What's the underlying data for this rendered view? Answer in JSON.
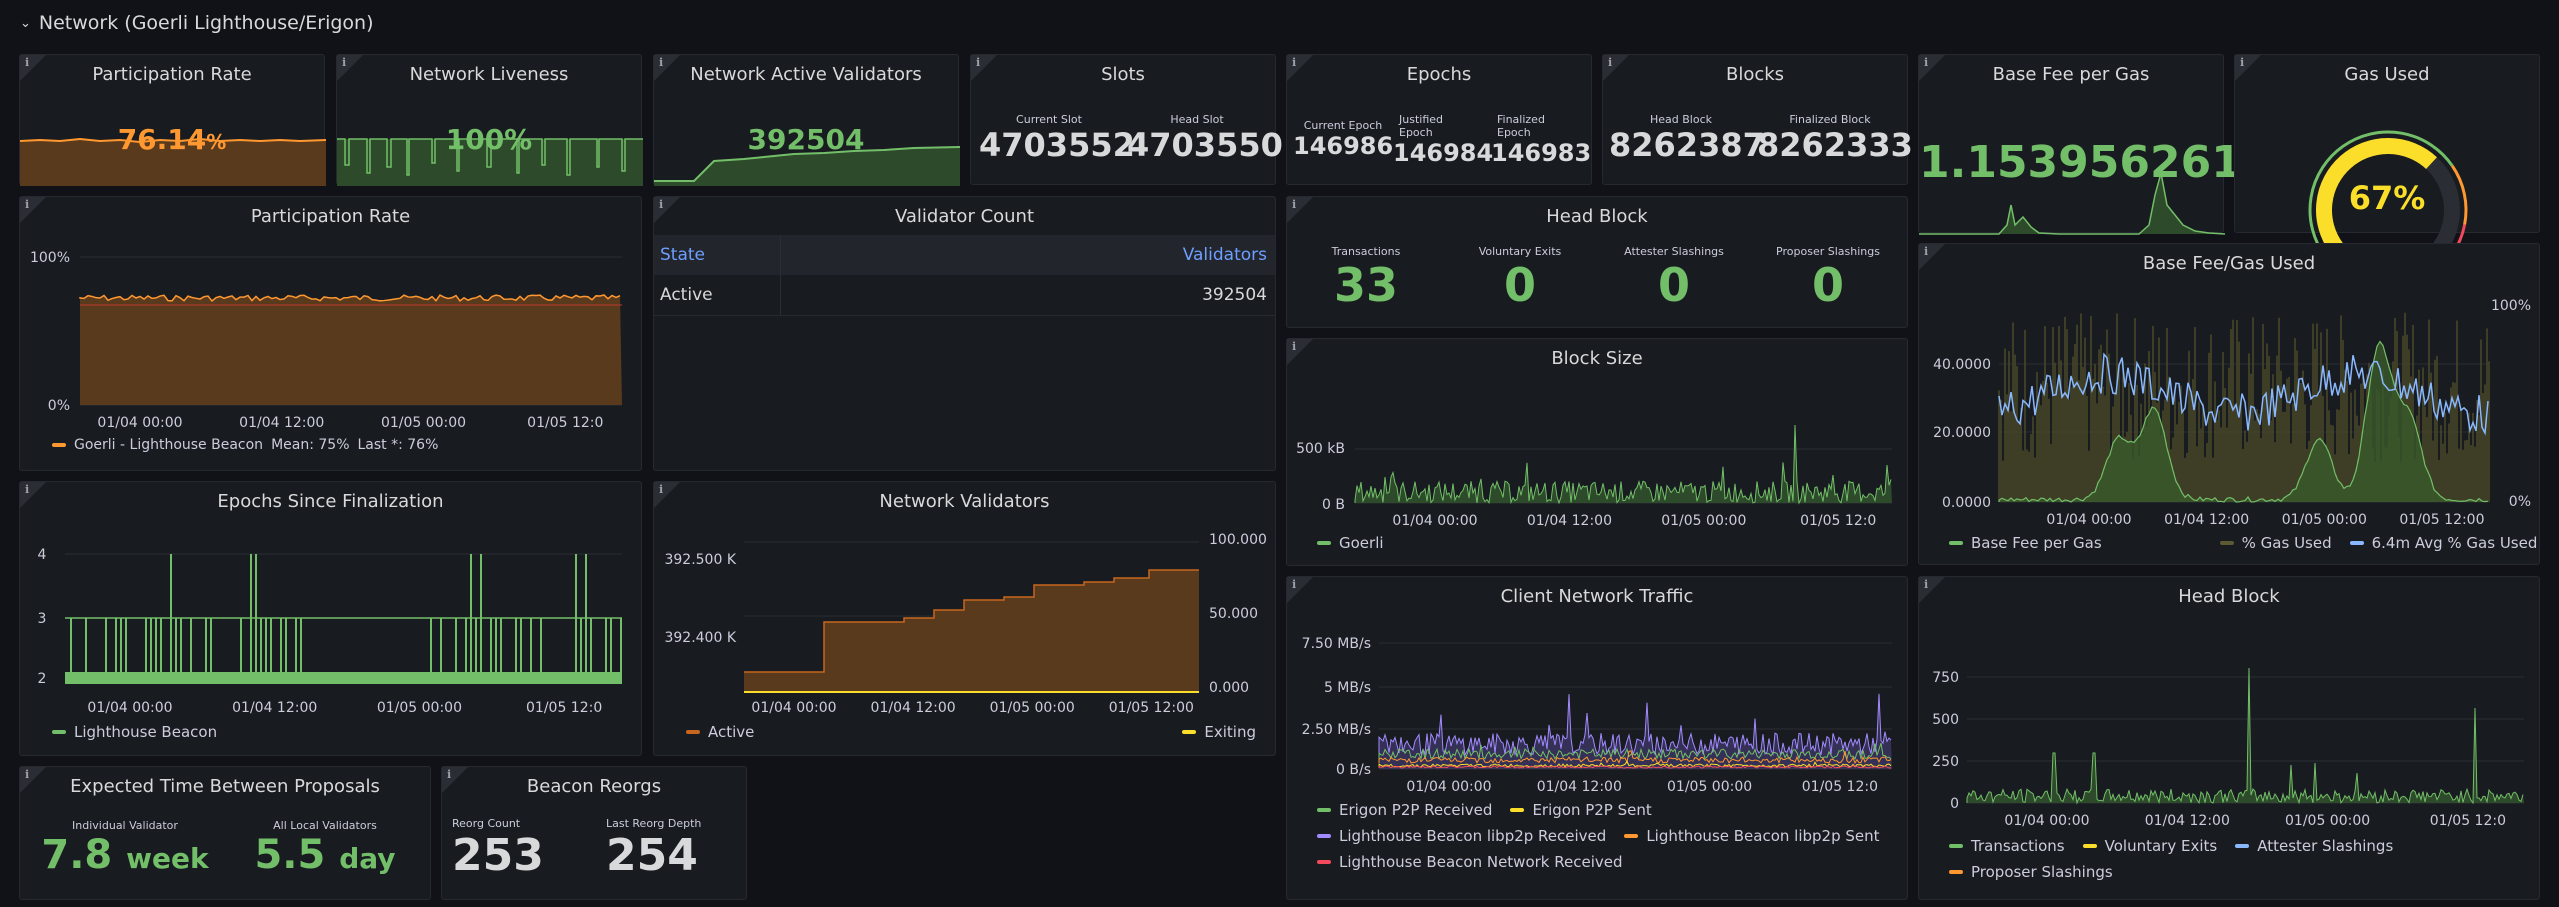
{
  "row": {
    "title": "Network (Goerli Lighthouse/Erigon)"
  },
  "panels": {
    "participation_stat": {
      "title": "Participation Rate",
      "value": "76.14",
      "unit": "%"
    },
    "liveness": {
      "title": "Network Liveness",
      "value": "100%"
    },
    "active_validators": {
      "title": "Network Active Validators",
      "value": "392504"
    },
    "slots": {
      "title": "Slots",
      "current_label": "Current Slot",
      "current": "4703552",
      "head_label": "Head Slot",
      "head": "4703550"
    },
    "epochs": {
      "title": "Epochs",
      "current_label": "Current Epoch",
      "current": "146986",
      "justified_label": "Justified Epoch",
      "justified": "146984",
      "finalized_label": "Finalized Epoch",
      "finalized": "146983"
    },
    "blocks": {
      "title": "Blocks",
      "head_label": "Head Block",
      "head": "8262387",
      "finalized_label": "Finalized Block",
      "finalized": "8262333"
    },
    "base_fee": {
      "title": "Base Fee per Gas",
      "value": "1.153956261"
    },
    "gas_used": {
      "title": "Gas Used",
      "value": "67%",
      "fraction": 0.67
    },
    "participation_chart": {
      "title": "Participation Rate",
      "yticks": [
        "100%",
        "0%"
      ],
      "xticks": [
        "01/04 00:00",
        "01/04 12:00",
        "01/05 00:00",
        "01/05 12:0"
      ],
      "legend": "Goerli - Lighthouse Beacon",
      "mean": "Mean: 75%",
      "last": "Last *: 76%"
    },
    "validator_count": {
      "title": "Validator Count",
      "col_state": "State",
      "col_validators": "Validators",
      "rows": [
        {
          "state": "Active",
          "count": "392504"
        }
      ]
    },
    "head_block_stats": {
      "title": "Head Block",
      "items": [
        {
          "label": "Transactions",
          "value": "33"
        },
        {
          "label": "Voluntary Exits",
          "value": "0"
        },
        {
          "label": "Attester Slashings",
          "value": "0"
        },
        {
          "label": "Proposer Slashings",
          "value": "0"
        }
      ]
    },
    "base_fee_gas_used": {
      "title": "Base Fee/Gas Used",
      "yticks_left": [
        "40.0000",
        "20.0000",
        "0.0000"
      ],
      "yticks_right": [
        "100%",
        "0%"
      ],
      "xticks": [
        "01/04 00:00",
        "01/04 12:00",
        "01/05 00:00",
        "01/05 12:00"
      ],
      "legend": [
        "Base Fee per Gas",
        "% Gas Used",
        "6.4m Avg % Gas Used"
      ]
    },
    "block_size": {
      "title": "Block Size",
      "yticks": [
        "500 kB",
        "0 B"
      ],
      "xticks": [
        "01/04 00:00",
        "01/04 12:00",
        "01/05 00:00",
        "01/05 12:0"
      ],
      "legend": "Goerli"
    },
    "epochs_since_finalization": {
      "title": "Epochs Since Finalization",
      "yticks": [
        "4",
        "3",
        "2"
      ],
      "xticks": [
        "01/04 00:00",
        "01/04 12:00",
        "01/05 00:00",
        "01/05 12:0"
      ],
      "legend": "Lighthouse Beacon"
    },
    "network_validators": {
      "title": "Network Validators",
      "yticks_left": [
        "392.500 K",
        "392.400 K"
      ],
      "yticks_right": [
        "100.000",
        "50.000",
        "0.000"
      ],
      "xticks": [
        "01/04 00:00",
        "01/04 12:00",
        "01/05 00:00",
        "01/05 12:00"
      ],
      "legend": [
        "Active",
        "Exiting"
      ]
    },
    "client_traffic": {
      "title": "Client Network Traffic",
      "yticks": [
        "7.50 MB/s",
        "5 MB/s",
        "2.50 MB/s",
        "0 B/s"
      ],
      "xticks": [
        "01/04 00:00",
        "01/04 12:00",
        "01/05 00:00",
        "01/05 12:0"
      ],
      "legend": [
        "Erigon P2P Received",
        "Erigon P2P Sent",
        "Lighthouse Beacon libp2p Received",
        "Lighthouse Beacon libp2p Sent",
        "Lighthouse Beacon Network Received"
      ]
    },
    "head_block_chart": {
      "title": "Head Block",
      "yticks": [
        "750",
        "500",
        "250",
        "0"
      ],
      "xticks": [
        "01/04 00:00",
        "01/04 12:00",
        "01/05 00:00",
        "01/05 12:0"
      ],
      "legend": [
        "Transactions",
        "Voluntary Exits",
        "Attester Slashings",
        "Proposer Slashings"
      ]
    },
    "expected_time": {
      "title": "Expected Time Between Proposals",
      "ind_label": "Individual Validator",
      "ind_value": "7.8",
      "ind_unit": "week",
      "all_label": "All Local Validators",
      "all_value": "5.5",
      "all_unit": "day"
    },
    "reorgs": {
      "title": "Beacon Reorgs",
      "count_label": "Reorg Count",
      "count": "253",
      "depth_label": "Last Reorg Depth",
      "depth": "254"
    }
  },
  "colors": {
    "green": "#73bf69",
    "orange": "#ff9830",
    "yellow": "#fade2a",
    "blue": "#8ab8ff",
    "purple": "#a28bff",
    "red": "#f2495c",
    "bg": "#181b1f"
  }
}
